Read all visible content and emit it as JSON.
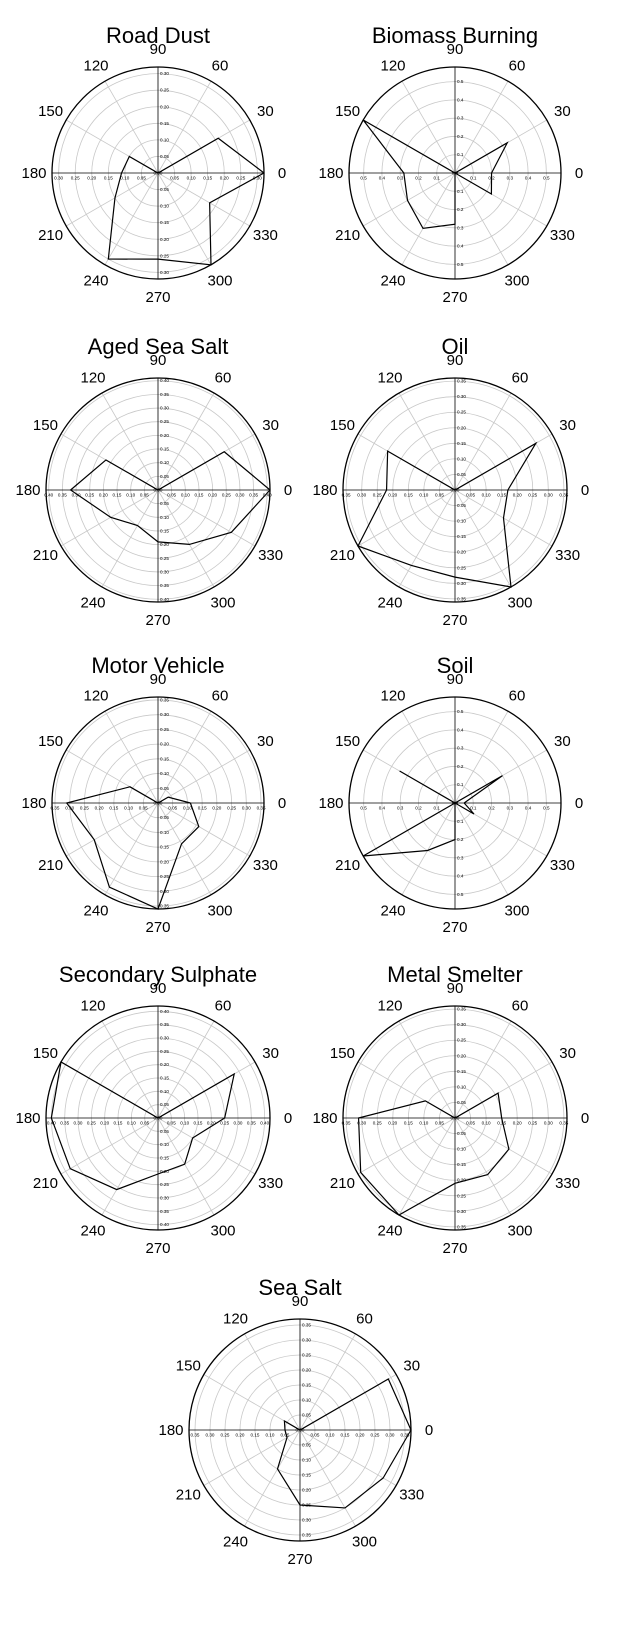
{
  "chart_data": [
    {
      "type": "polar-line",
      "title": "Road Dust",
      "angle_labels": [
        "0",
        "30",
        "60",
        "90",
        "120",
        "150",
        "180",
        "210",
        "240",
        "270",
        "300",
        "330"
      ],
      "rmax": 0.32,
      "ticks": [
        "0.00",
        "0.05",
        "0.10",
        "0.15",
        "0.20",
        "0.25",
        "0.30"
      ],
      "tick_values": [
        0,
        0.05,
        0.1,
        0.15,
        0.2,
        0.25,
        0.3
      ],
      "angles": [
        0,
        30,
        60,
        90,
        120,
        150,
        180,
        210,
        240,
        270,
        300,
        330,
        360
      ],
      "values": [
        0.32,
        0.21,
        0.0,
        0.0,
        0.0,
        0.1,
        0.11,
        0.15,
        0.3,
        0.26,
        0.32,
        0.18,
        0.32
      ]
    },
    {
      "type": "polar-line",
      "title": "Biomass Burning",
      "angle_labels": [
        "0",
        "30",
        "60",
        "90",
        "120",
        "150",
        "180",
        "210",
        "240",
        "270",
        "300",
        "330"
      ],
      "rmax": 0.58,
      "ticks": [
        "0.0",
        "0.1",
        "0.2",
        "0.3",
        "0.4",
        "0.5"
      ],
      "tick_values": [
        0,
        0.1,
        0.2,
        0.3,
        0.4,
        0.5
      ],
      "angles": [
        0,
        30,
        60,
        90,
        120,
        150,
        180,
        210,
        240,
        270,
        300,
        330,
        360
      ],
      "values": [
        0.2,
        0.33,
        0.0,
        0.0,
        0.0,
        0.58,
        0.28,
        0.3,
        0.35,
        0.28,
        0.0,
        0.23,
        0.2
      ]
    },
    {
      "type": "polar-line",
      "title": "Aged Sea Salt",
      "angle_labels": [
        "0",
        "30",
        "60",
        "90",
        "120",
        "150",
        "180",
        "210",
        "240",
        "270",
        "300",
        "330"
      ],
      "rmax": 0.41,
      "ticks": [
        "0.00",
        "0.05",
        "0.10",
        "0.15",
        "0.20",
        "0.25",
        "0.30",
        "0.35",
        "0.40"
      ],
      "tick_values": [
        0,
        0.05,
        0.1,
        0.15,
        0.2,
        0.25,
        0.3,
        0.35,
        0.4
      ],
      "angles": [
        0,
        30,
        60,
        90,
        120,
        150,
        180,
        210,
        240,
        270,
        300,
        330,
        360
      ],
      "values": [
        0.41,
        0.28,
        0.0,
        0.0,
        0.0,
        0.22,
        0.32,
        0.2,
        0.15,
        0.19,
        0.23,
        0.31,
        0.41
      ]
    },
    {
      "type": "polar-line",
      "title": "Oil",
      "angle_labels": [
        "0",
        "30",
        "60",
        "90",
        "120",
        "150",
        "180",
        "210",
        "240",
        "270",
        "300",
        "330"
      ],
      "rmax": 0.36,
      "ticks": [
        "0.00",
        "0.05",
        "0.10",
        "0.15",
        "0.20",
        "0.25",
        "0.30",
        "0.35"
      ],
      "tick_values": [
        0,
        0.05,
        0.1,
        0.15,
        0.2,
        0.25,
        0.3,
        0.35
      ],
      "angles": [
        0,
        30,
        60,
        90,
        120,
        150,
        180,
        210,
        240,
        270,
        300,
        330,
        360
      ],
      "values": [
        0.17,
        0.3,
        0.0,
        0.0,
        0.0,
        0.25,
        0.22,
        0.36,
        0.28,
        0.28,
        0.36,
        0.18,
        0.17
      ]
    },
    {
      "type": "polar-line",
      "title": "Motor Vehicle",
      "angle_labels": [
        "0",
        "30",
        "60",
        "90",
        "120",
        "150",
        "180",
        "210",
        "240",
        "270",
        "300",
        "330"
      ],
      "rmax": 0.36,
      "ticks": [
        "0.00",
        "0.05",
        "0.10",
        "0.15",
        "0.20",
        "0.25",
        "0.30",
        "0.35"
      ],
      "tick_values": [
        0,
        0.05,
        0.1,
        0.15,
        0.2,
        0.25,
        0.3,
        0.35
      ],
      "angles": [
        0,
        30,
        60,
        90,
        120,
        150,
        180,
        210,
        240,
        270,
        300,
        330,
        360
      ],
      "values": [
        0.11,
        0.04,
        0.0,
        0.0,
        0.0,
        0.11,
        0.31,
        0.25,
        0.33,
        0.36,
        0.16,
        0.16,
        0.11
      ]
    },
    {
      "type": "polar-line",
      "title": "Soil",
      "angle_labels": [
        "0",
        "30",
        "60",
        "90",
        "120",
        "150",
        "180",
        "210",
        "240",
        "270",
        "300",
        "330"
      ],
      "rmax": 0.58,
      "ticks": [
        "0.0",
        "0.1",
        "0.2",
        "0.3",
        "0.4",
        "0.5"
      ],
      "tick_values": [
        0,
        0.1,
        0.2,
        0.3,
        0.4,
        0.5
      ],
      "angles": [
        0,
        30,
        60,
        90,
        120,
        150,
        180,
        210,
        240,
        270,
        300,
        330,
        360
      ],
      "values": [
        0.05,
        0.3,
        0.0,
        0.0,
        0.0,
        0.35,
        0.0,
        0.58,
        0.3,
        0.2,
        0.0,
        0.12,
        0.05
      ]
    },
    {
      "type": "polar-line",
      "title": "Secondary Sulphate",
      "angle_labels": [
        "0",
        "30",
        "60",
        "90",
        "120",
        "150",
        "180",
        "210",
        "240",
        "270",
        "300",
        "330"
      ],
      "rmax": 0.42,
      "ticks": [
        "0.00",
        "0.05",
        "0.10",
        "0.15",
        "0.20",
        "0.25",
        "0.30",
        "0.35",
        "0.40"
      ],
      "tick_values": [
        0,
        0.05,
        0.1,
        0.15,
        0.2,
        0.25,
        0.3,
        0.35,
        0.4
      ],
      "angles": [
        0,
        30,
        60,
        90,
        120,
        150,
        180,
        210,
        240,
        270,
        300,
        330,
        360
      ],
      "values": [
        0.25,
        0.33,
        0.0,
        0.0,
        0.0,
        0.42,
        0.4,
        0.38,
        0.31,
        0.21,
        0.2,
        0.15,
        0.25
      ]
    },
    {
      "type": "polar-line",
      "title": "Metal Smelter",
      "angle_labels": [
        "0",
        "30",
        "60",
        "90",
        "120",
        "150",
        "180",
        "210",
        "240",
        "270",
        "300",
        "330"
      ],
      "rmax": 0.36,
      "ticks": [
        "0.00",
        "0.05",
        "0.10",
        "0.15",
        "0.20",
        "0.25",
        "0.30",
        "0.35"
      ],
      "tick_values": [
        0,
        0.05,
        0.1,
        0.15,
        0.2,
        0.25,
        0.3,
        0.35
      ],
      "angles": [
        0,
        30,
        60,
        90,
        120,
        150,
        180,
        210,
        240,
        270,
        300,
        330,
        360
      ],
      "values": [
        0.15,
        0.16,
        0.0,
        0.0,
        0.0,
        0.11,
        0.31,
        0.35,
        0.36,
        0.21,
        0.21,
        0.2,
        0.15
      ]
    },
    {
      "type": "polar-line",
      "title": "Sea Salt",
      "angle_labels": [
        "0",
        "30",
        "60",
        "90",
        "120",
        "150",
        "180",
        "210",
        "240",
        "270",
        "300",
        "330"
      ],
      "rmax": 0.37,
      "ticks": [
        "0.00",
        "0.05",
        "0.10",
        "0.15",
        "0.20",
        "0.25",
        "0.30",
        "0.35"
      ],
      "tick_values": [
        0,
        0.05,
        0.1,
        0.15,
        0.2,
        0.25,
        0.3,
        0.35
      ],
      "angles": [
        0,
        30,
        60,
        90,
        120,
        150,
        180,
        210,
        240,
        270,
        300,
        330,
        360
      ],
      "values": [
        0.37,
        0.34,
        0.0,
        0.0,
        0.0,
        0.06,
        0.05,
        0.05,
        0.15,
        0.25,
        0.3,
        0.32,
        0.37
      ]
    }
  ]
}
